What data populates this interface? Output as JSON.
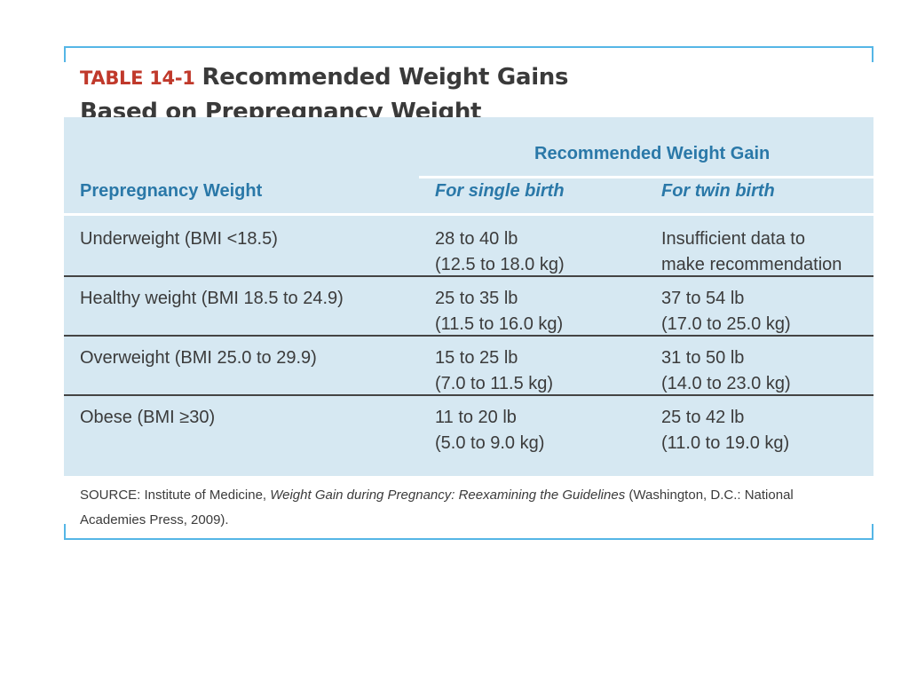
{
  "table": {
    "tag": "TABLE 14-1",
    "title_line1": "Recommended Weight Gains",
    "title_line2": "Based on Prepregnancy Weight",
    "group_header": "Recommended Weight Gain",
    "col_prepregnancy": "Prepregnancy Weight",
    "col_single": "For single birth",
    "col_twin": "For twin birth",
    "rows": [
      {
        "category": "Underweight (BMI <18.5)",
        "single_1": "28 to 40 lb",
        "single_2": "(12.5 to 18.0 kg)",
        "twin_1": "Insufficient data to",
        "twin_2": "make recommendation"
      },
      {
        "category": "Healthy weight (BMI 18.5 to 24.9)",
        "single_1": "25 to 35 lb",
        "single_2": "(11.5 to 16.0 kg)",
        "twin_1": "37 to 54 lb",
        "twin_2": "(17.0 to 25.0 kg)"
      },
      {
        "category": "Overweight (BMI 25.0 to 29.9)",
        "single_1": "15 to 25 lb",
        "single_2": "(7.0 to 11.5 kg)",
        "twin_1": "31 to 50 lb",
        "twin_2": "(14.0 to 23.0 kg)"
      },
      {
        "category": "Obese (BMI ≥30)",
        "single_1": "11 to 20 lb",
        "single_2": "(5.0 to 9.0 kg)",
        "twin_1": "25 to 42 lb",
        "twin_2": "(11.0 to 19.0 kg)"
      }
    ],
    "source_prefix": "SOURCE: Institute of Medicine, ",
    "source_title": "Weight Gain during Pregnancy: Reexamining the Guidelines",
    "source_suffix": " (Washington, D.C.: National Academies Press, 2009)."
  },
  "colors": {
    "frame": "#55b6e6",
    "panel": "#d6e8f2",
    "header_text": "#2a78a8",
    "tag_red": "#c0392b"
  }
}
